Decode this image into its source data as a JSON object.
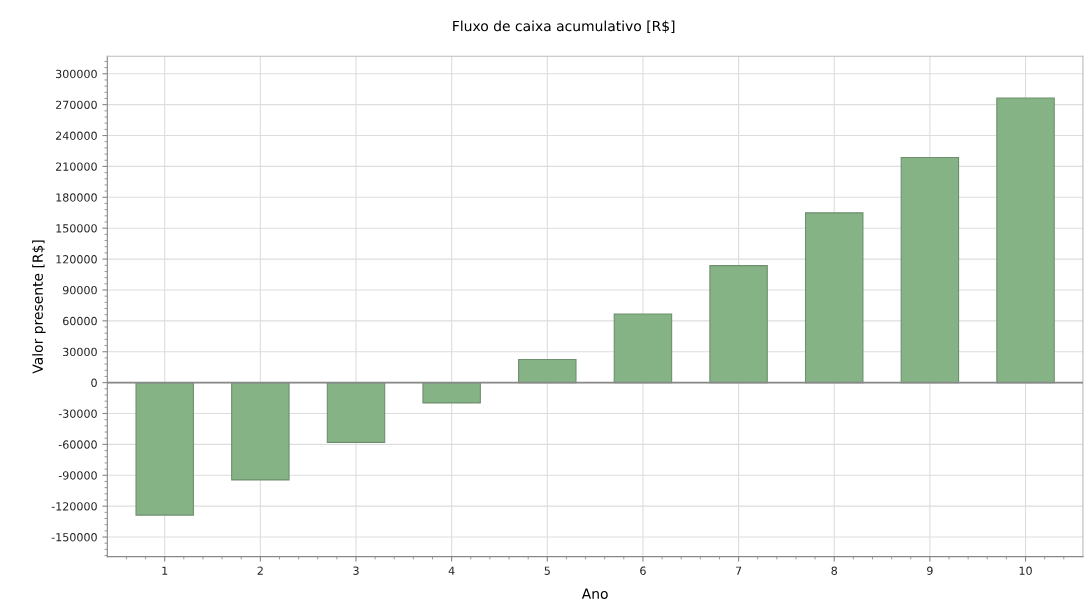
{
  "chart_data": {
    "type": "bar",
    "title": "Fluxo de caixa acumulativo [R$]",
    "xlabel": "Ano",
    "ylabel": "Valor presente [R$]",
    "categories": [
      "1",
      "2",
      "3",
      "4",
      "5",
      "6",
      "7",
      "8",
      "9",
      "10"
    ],
    "values": [
      -128700,
      -94500,
      -58100,
      -19700,
      22400,
      66700,
      113600,
      164900,
      218700,
      276400
    ],
    "color": "#86b386",
    "ylim": [
      -169000,
      317000
    ],
    "yticks": [
      -150000,
      -120000,
      -90000,
      -60000,
      -30000,
      0,
      30000,
      60000,
      90000,
      120000,
      150000,
      180000,
      210000,
      240000,
      270000,
      300000
    ],
    "grid": true
  }
}
